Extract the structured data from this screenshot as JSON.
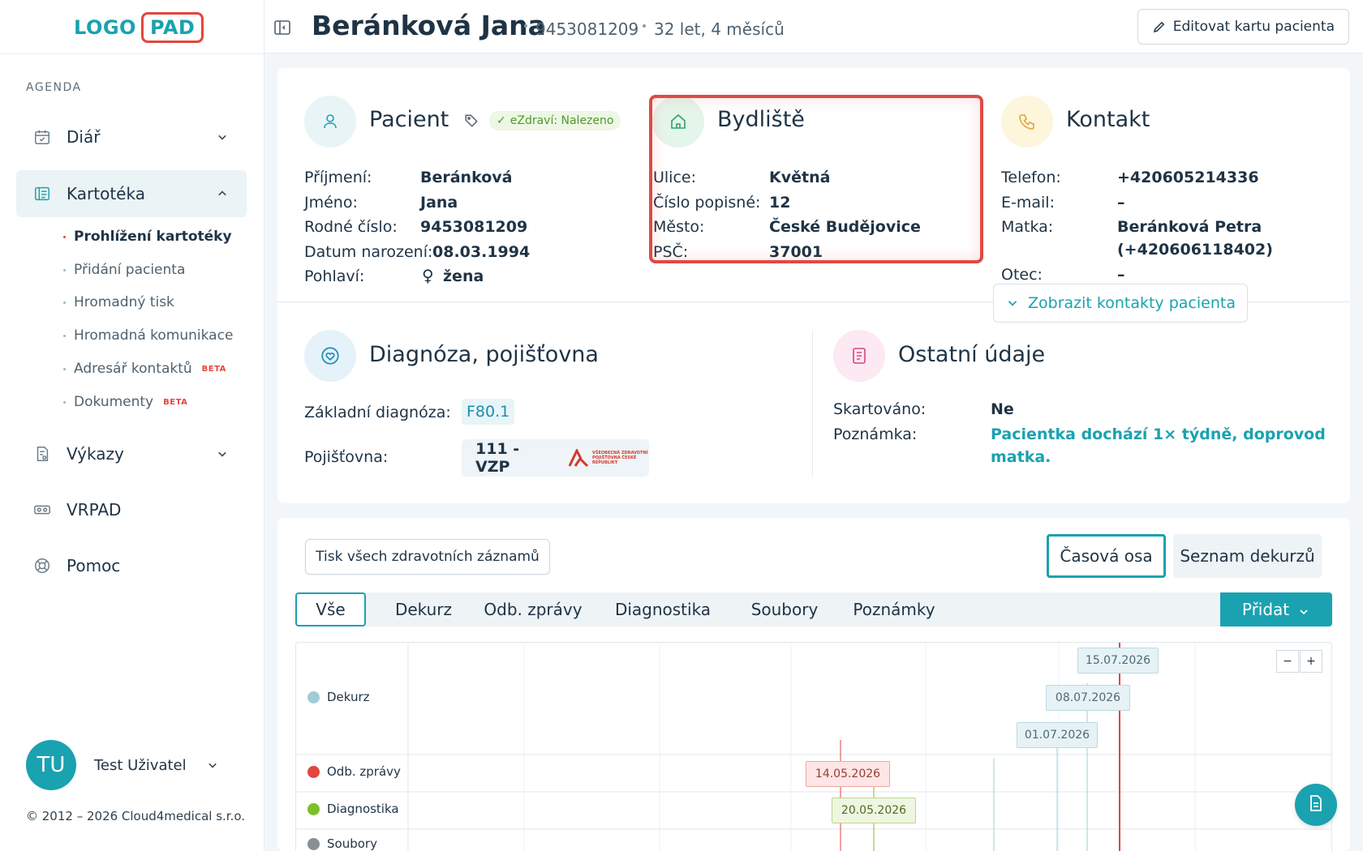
{
  "logo": {
    "left": "LOGO",
    "right": "PAD"
  },
  "sidebar": {
    "section_label": "AGENDA",
    "items": [
      {
        "label": "Diář",
        "icon": "calendar-icon"
      },
      {
        "label": "Kartotéka",
        "icon": "card-file-icon"
      },
      {
        "label": "Výkazy",
        "icon": "report-icon"
      },
      {
        "label": "VRPAD",
        "icon": "vr-headset-icon"
      },
      {
        "label": "Pomoc",
        "icon": "lifebuoy-icon"
      }
    ],
    "sub_items": [
      {
        "label": "Prohlížení kartotéky"
      },
      {
        "label": "Přidání pacienta"
      },
      {
        "label": "Hromadný tisk"
      },
      {
        "label": "Hromadná komunikace"
      },
      {
        "label": "Adresář kontaktů",
        "badge": "BETA"
      },
      {
        "label": "Dokumenty",
        "badge": "BETA"
      }
    ],
    "user": {
      "initials": "TU",
      "name": "Test Uživatel"
    },
    "copyright": "© 2012 – 2026 Cloud4medical s.r.o."
  },
  "header": {
    "patient_name": "Beránková Jana",
    "birth_number": "9453081209",
    "age": "32 let, 4 měsíců",
    "edit_button": "Editovat kartu pacienta"
  },
  "pacient": {
    "title": "Pacient",
    "ezdravi": "eZdraví: Nalezeno",
    "fields": [
      {
        "label": "Příjmení:",
        "value": "Beránková"
      },
      {
        "label": "Jméno:",
        "value": "Jana"
      },
      {
        "label": "Rodné číslo:",
        "value": "9453081209"
      },
      {
        "label": "Datum narození:",
        "value": "08.03.1994"
      },
      {
        "label": "Pohlaví:",
        "value": "žena"
      }
    ]
  },
  "bydliste": {
    "title": "Bydliště",
    "fields": [
      {
        "label": "Ulice:",
        "value": "Květná"
      },
      {
        "label": "Číslo popisné:",
        "value": "12"
      },
      {
        "label": "Město:",
        "value": "České Budějovice"
      },
      {
        "label": "PSČ:",
        "value": "37001"
      }
    ]
  },
  "kontakt": {
    "title": "Kontakt",
    "fields": [
      {
        "label": "Telefon:",
        "value": "+420605214336"
      },
      {
        "label": "E-mail:",
        "value": "–"
      },
      {
        "label": "Matka:",
        "value": "Beránková Petra",
        "value2": "(+420606118402)"
      },
      {
        "label": "Otec:",
        "value": "–"
      }
    ],
    "show_contacts": "Zobrazit kontakty pacienta"
  },
  "diagnoza": {
    "title": "Diagnóza, pojišťovna",
    "diag_label": "Základní diagnóza:",
    "diag_code": "F80.1",
    "ins_label": "Pojišťovna:",
    "ins_code": "111 - VZP",
    "ins_logo_text": "VŠEOBECNÁ ZDRAVOTNÍ POJIŠŤOVNA ČESKÉ REPUBLIKY"
  },
  "ostatni": {
    "title": "Ostatní údaje",
    "fields": [
      {
        "label": "Skartováno:",
        "value": "Ne"
      },
      {
        "label": "Poznámka:",
        "value": "Pacientka dochází 1× týdně, doprovod",
        "value2": "matka."
      }
    ]
  },
  "records": {
    "print_all": "Tisk všech zdravotních záznamů",
    "views": [
      "Časová osa",
      "Seznam dekurzů"
    ],
    "tabs": [
      "Vše",
      "Dekurz",
      "Odb. zprávy",
      "Diagnostika",
      "Soubory",
      "Poznámky"
    ],
    "add": "Přidat"
  },
  "timeline": {
    "rows": [
      {
        "label": "Dekurz",
        "color": "#9fccd6"
      },
      {
        "label": "Odb. zprávy",
        "color": "#e2463e"
      },
      {
        "label": "Diagnostika",
        "color": "#7cbf2a"
      },
      {
        "label": "Soubory",
        "color": "#8a8f93"
      }
    ],
    "events": [
      {
        "row": "Dekurz",
        "date": "15.07.2026"
      },
      {
        "row": "Dekurz",
        "date": "08.07.2026"
      },
      {
        "row": "Dekurz",
        "date": "01.07.2026"
      },
      {
        "row": "Odb. zprávy",
        "date": "14.05.2026"
      },
      {
        "row": "Diagnostika",
        "date": "20.05.2026"
      }
    ],
    "zoom_out": "−",
    "zoom_in": "+"
  },
  "colors": {
    "accent": "#1aa2b0",
    "danger": "#e2463e"
  }
}
